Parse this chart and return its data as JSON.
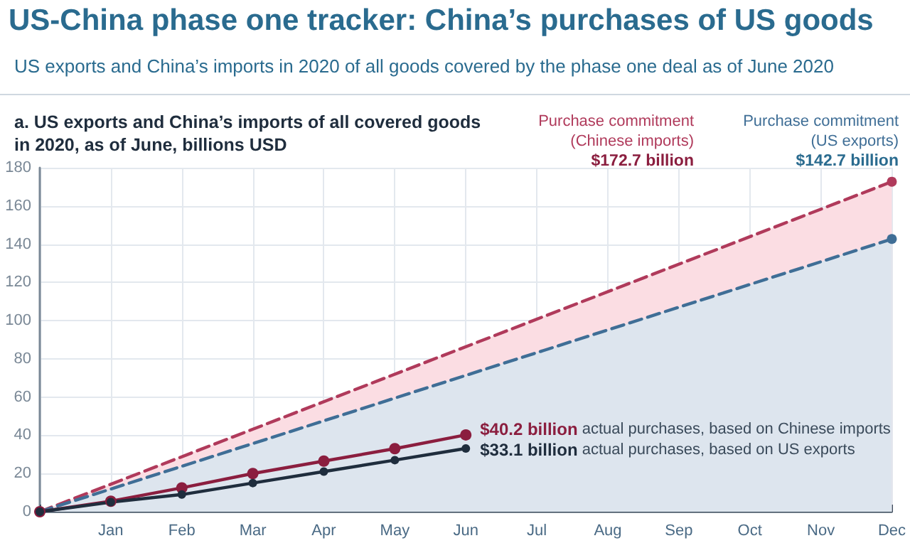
{
  "chart_data": {
    "type": "line",
    "title": "US-China phase one tracker: China’s purchases of US goods",
    "subtitle": "US exports and China’s imports in 2020 of all goods covered by the phase one deal as of June 2020",
    "annotations": [
      "a. US exports and China’s imports of all covered goods\nin 2020, as of June, billions USD",
      "Purchase commitment\n(Chinese imports)\n$172.7 billion",
      "Purchase commitment\n(US exports)\n$142.7 billion",
      {
        "text": "$40.2 billion actual purchases, based on Chinese imports",
        "x": "Jun",
        "y": 40.2
      },
      {
        "text": "$33.1 billion actual purchases, based on US exports",
        "x": "Jun",
        "y": 33.1
      }
    ],
    "categories": [
      null,
      "Jan",
      "Feb",
      "Mar",
      "Apr",
      "May",
      "Jun",
      "Jul",
      "Aug",
      "Sep",
      "Oct",
      "Nov",
      "Dec"
    ],
    "series": [
      {
        "type": "area",
        "color": "#b03a5b",
        "line_style": "dashed",
        "values": [
          0,
          null,
          null,
          null,
          null,
          null,
          null,
          null,
          null,
          null,
          null,
          null,
          172.7
        ]
      },
      {
        "type": "area",
        "color": "#3f6e96",
        "line_style": "dashed",
        "values": [
          0,
          null,
          null,
          null,
          null,
          null,
          null,
          null,
          null,
          null,
          null,
          null,
          142.7
        ]
      },
      {
        "type": "line",
        "color": "#8b1e3f",
        "line_style": "solid",
        "values": [
          0,
          5.5,
          12.5,
          20,
          26.5,
          33,
          40.2,
          null,
          null,
          null,
          null,
          null,
          null
        ]
      },
      {
        "type": "line",
        "color": "#1f2d3d",
        "line_style": "solid",
        "values": [
          0,
          5,
          9,
          15,
          21,
          27,
          33.1,
          null,
          null,
          null,
          null,
          null,
          null
        ]
      }
    ],
    "marker": "circle",
    "ylim": [
      0,
      180
    ],
    "yticks": [
      0,
      20,
      40,
      60,
      80,
      100,
      120,
      140,
      160,
      180
    ],
    "grid": true
  }
}
